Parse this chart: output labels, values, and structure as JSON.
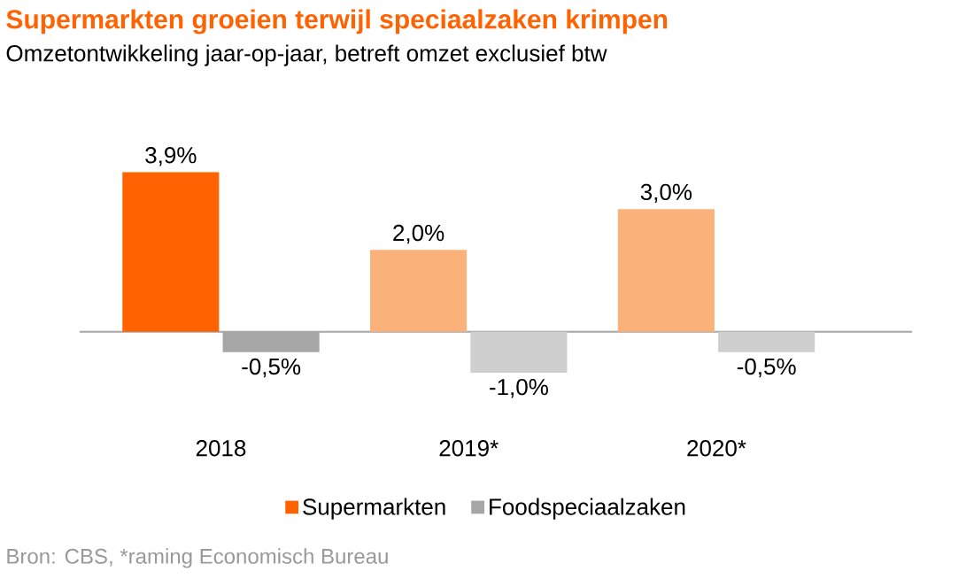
{
  "chart_data": {
    "type": "bar",
    "title": "Supermarkten groeien terwijl speciaalzaken krimpen",
    "subtitle": "Omzetontwikkeling jaar-op-jaar, betreft omzet exclusief btw",
    "categories": [
      "2018",
      "2019*",
      "2020*"
    ],
    "series": [
      {
        "name": "Supermarkten",
        "color": "#ff6200",
        "colors": [
          "#ff6200",
          "#fbb27a",
          "#fbb27a"
        ],
        "values": [
          3.9,
          2.0,
          3.0
        ],
        "value_labels": [
          "3,9%",
          "2,0%",
          "3,0%"
        ]
      },
      {
        "name": "Foodspeciaalzaken",
        "color": "#a6a6a6",
        "colors": [
          "#a6a6a6",
          "#cfcfcf",
          "#cfcfcf"
        ],
        "values": [
          -0.5,
          -1.0,
          -0.5
        ],
        "value_labels": [
          "-0,5%",
          "-1,0%",
          "-0,5%"
        ]
      }
    ],
    "legend": "bottom",
    "annotations": [
      "Bron: CBS, *raming Economisch Bureau"
    ]
  }
}
